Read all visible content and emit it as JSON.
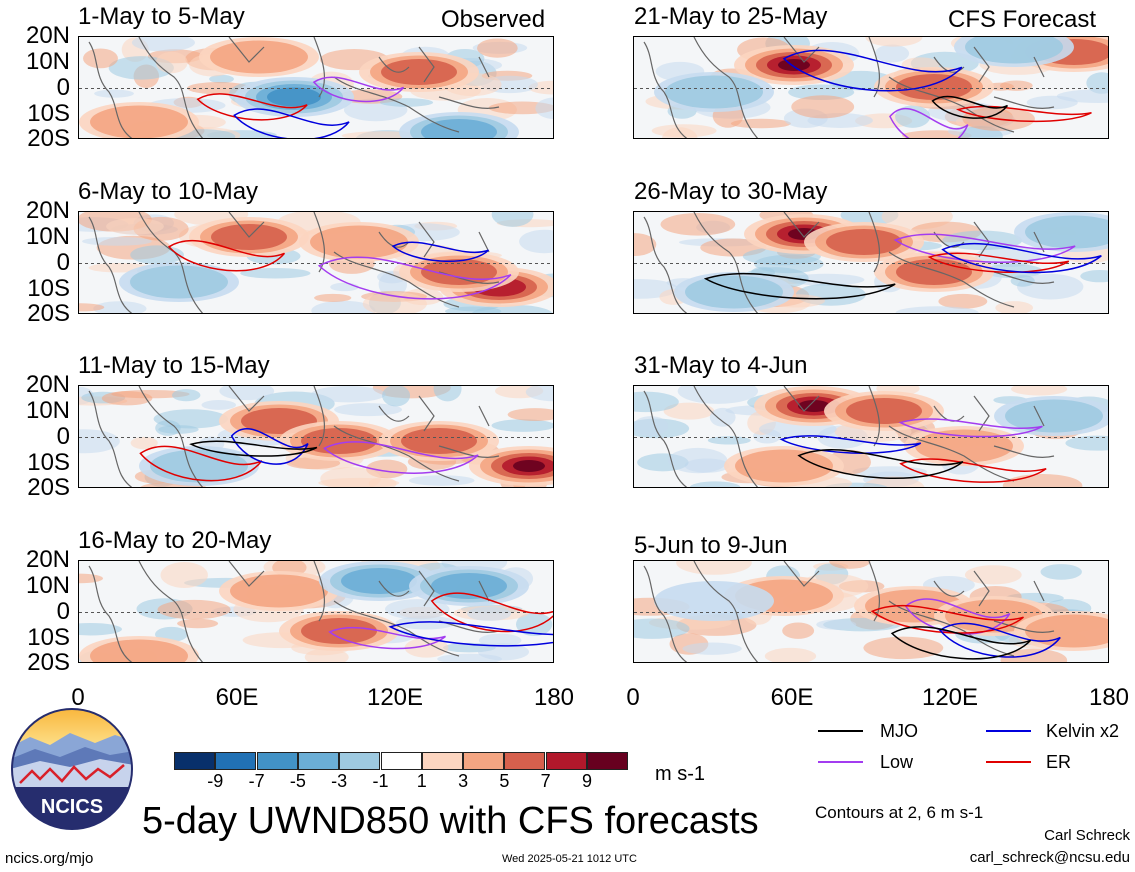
{
  "header": {
    "left_label": "Observed",
    "right_label": "CFS Forecast"
  },
  "panels_left": [
    {
      "title": "1-May to 5-May"
    },
    {
      "title": "6-May to 10-May"
    },
    {
      "title": "11-May to 15-May"
    },
    {
      "title": "16-May to 20-May"
    }
  ],
  "panels_right": [
    {
      "title": "21-May to 25-May"
    },
    {
      "title": "26-May to 30-May"
    },
    {
      "title": "31-May to 4-Jun"
    },
    {
      "title": "5-Jun to 9-Jun"
    }
  ],
  "lat_labels": [
    "20N",
    "10N",
    "0",
    "10S",
    "20S"
  ],
  "lon_labels": [
    "0",
    "60E",
    "120E",
    "180"
  ],
  "colorbar": {
    "labels": [
      "-9",
      "-7",
      "-5",
      "-3",
      "-1",
      "1",
      "3",
      "5",
      "7",
      "9"
    ],
    "colors": [
      "#08306b",
      "#2171b5",
      "#4292c6",
      "#6baed6",
      "#9ecae1",
      "#ffffff",
      "#fcd5c0",
      "#f4a582",
      "#d6604d",
      "#b2182b",
      "#67001f"
    ],
    "units": "m s-1"
  },
  "legend": {
    "items": [
      {
        "label": "MJO",
        "color": "#000000"
      },
      {
        "label": "Kelvin x2",
        "color": "#0000dd"
      },
      {
        "label": "Low",
        "color": "#a33cf0"
      },
      {
        "label": "ER",
        "color": "#e00000"
      }
    ],
    "note": "Contours at 2, 6 m s-1"
  },
  "footer": {
    "org": "NCICS",
    "main_title": "5-day UWND850 with CFS forecasts",
    "url": "ncics.org/mjo",
    "timestamp": "Wed 2025-05-21 1012 UTC",
    "author": "Carl Schreck",
    "email": "carl_schreck@ncsu.edu"
  }
}
